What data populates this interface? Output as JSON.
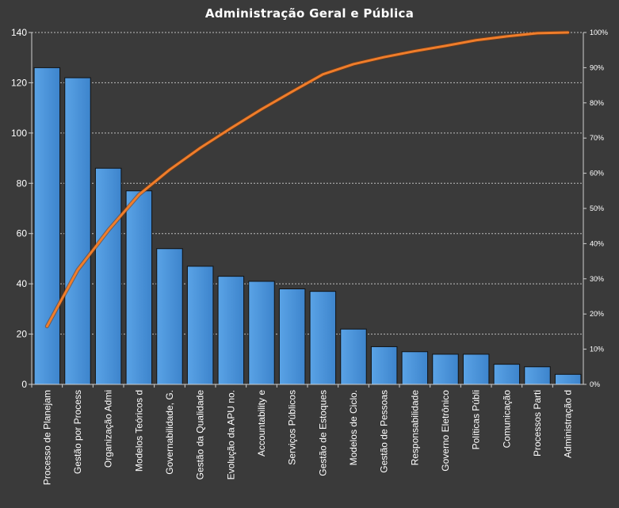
{
  "chart_data": {
    "type": "bar",
    "title": "Administração  Geral  e Pública",
    "categories": [
      "Processo de Planejam",
      "Gestão por Process",
      "Organização Admi",
      "Modelos Teóricos d",
      "Governabilidade, G.",
      "Gestão da Qualidade",
      "Evolução da APU no.",
      "Accountability e",
      "Serviços Públicos",
      "Gestão de Estoques",
      "Modelos de Ciclo.",
      "Gestão de Pessoas",
      "Responsabilidade",
      "Governo Eletrônico",
      "Políticas Públi",
      "Comunicação",
      "Processos Parti",
      "Administração d"
    ],
    "series": [
      {
        "type": "bar",
        "values": [
          126,
          122,
          86,
          77,
          54,
          47,
          43,
          41,
          38,
          37,
          22,
          15,
          13,
          12,
          12,
          8,
          7,
          4
        ],
        "color": "#4d94d8"
      },
      {
        "type": "line",
        "axis": "right",
        "values": [
          16.5,
          32.5,
          43.8,
          53.9,
          61.0,
          67.2,
          72.8,
          78.2,
          83.2,
          88.1,
          91.0,
          93.0,
          94.7,
          96.2,
          97.8,
          98.9,
          99.8,
          100
        ],
        "color": "#f07d2a"
      }
    ],
    "ylim": [
      0,
      140
    ],
    "yticks": [
      "0",
      "20",
      "40",
      "60",
      "80",
      "100",
      "120",
      "140"
    ],
    "y2lim": [
      0,
      100
    ],
    "y2ticks": [
      "0%",
      "10%",
      "20%",
      "30%",
      "40%",
      "50%",
      "60%",
      "70%",
      "80%",
      "90%",
      "100%"
    ],
    "grid": true,
    "xlabel": "",
    "ylabel": ""
  }
}
